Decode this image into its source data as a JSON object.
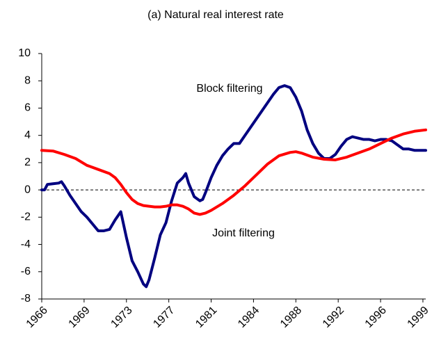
{
  "chart_data": {
    "type": "line",
    "title": "(a) Natural real interest rate",
    "xlim": [
      1966,
      2000
    ],
    "xticks": [
      {
        "value": 1966,
        "label": "1966"
      },
      {
        "value": 1969.75,
        "label": "1969"
      },
      {
        "value": 1973.5,
        "label": "1973"
      },
      {
        "value": 1977.25,
        "label": "1977"
      },
      {
        "value": 1981,
        "label": "1981"
      },
      {
        "value": 1984.75,
        "label": "1984"
      },
      {
        "value": 1988.5,
        "label": "1988"
      },
      {
        "value": 1992.25,
        "label": "1992"
      },
      {
        "value": 1996,
        "label": "1996"
      },
      {
        "value": 1999.75,
        "label": "1999"
      }
    ],
    "ylim": [
      -8,
      10
    ],
    "yticks": [
      -8,
      -6,
      -4,
      -2,
      0,
      2,
      4,
      6,
      8,
      10
    ],
    "hline": 0,
    "series": [
      {
        "name": "Block filtering",
        "color": "#000080",
        "x": [
          1966,
          1966.25,
          1966.5,
          1967,
          1967.5,
          1967.75,
          1968,
          1968.5,
          1969,
          1969.5,
          1970,
          1970.5,
          1971,
          1971.5,
          1972,
          1972.5,
          1973,
          1973.5,
          1974,
          1974.5,
          1975,
          1975.25,
          1975.5,
          1976,
          1976.5,
          1977,
          1977.5,
          1978,
          1978.5,
          1978.75,
          1979,
          1979.5,
          1980,
          1980.25,
          1980.5,
          1981,
          1981.5,
          1982,
          1982.5,
          1983,
          1983.5,
          1984,
          1984.5,
          1985,
          1985.5,
          1986,
          1986.5,
          1987,
          1987.5,
          1988,
          1988.5,
          1989,
          1989.5,
          1990,
          1990.5,
          1991,
          1991.5,
          1992,
          1992.5,
          1993,
          1993.5,
          1994,
          1994.5,
          1995,
          1995.5,
          1996,
          1996.5,
          1997,
          1997.5,
          1998,
          1998.5,
          1999,
          1999.5,
          2000
        ],
        "values": [
          0,
          0,
          0.4,
          0.45,
          0.5,
          0.6,
          0.3,
          -0.4,
          -1.0,
          -1.6,
          -2.0,
          -2.5,
          -3.0,
          -3.0,
          -2.9,
          -2.2,
          -1.6,
          -3.5,
          -5.2,
          -6.0,
          -6.9,
          -7.1,
          -6.6,
          -5.0,
          -3.3,
          -2.4,
          -0.8,
          0.5,
          0.9,
          1.2,
          0.5,
          -0.5,
          -0.8,
          -0.7,
          -0.2,
          0.9,
          1.8,
          2.5,
          3.0,
          3.4,
          3.4,
          4.0,
          4.6,
          5.2,
          5.8,
          6.4,
          7.0,
          7.5,
          7.65,
          7.5,
          6.8,
          5.8,
          4.4,
          3.4,
          2.7,
          2.3,
          2.3,
          2.6,
          3.2,
          3.7,
          3.9,
          3.8,
          3.7,
          3.7,
          3.6,
          3.7,
          3.7,
          3.6,
          3.3,
          3.0,
          3.0,
          2.9,
          2.9,
          2.9
        ]
      },
      {
        "name": "Joint filtering",
        "color": "#ff0000",
        "x": [
          1966,
          1967,
          1968,
          1969,
          1970,
          1971,
          1972,
          1972.5,
          1973,
          1973.5,
          1974,
          1974.5,
          1975,
          1975.5,
          1976,
          1976.5,
          1977,
          1977.5,
          1978,
          1978.5,
          1979,
          1979.5,
          1980,
          1980.5,
          1981,
          1982,
          1983,
          1984,
          1985,
          1986,
          1987,
          1988,
          1988.5,
          1989,
          1990,
          1991,
          1992,
          1993,
          1994,
          1995,
          1996,
          1997,
          1998,
          1999,
          2000
        ],
        "values": [
          2.9,
          2.85,
          2.6,
          2.3,
          1.8,
          1.5,
          1.2,
          0.9,
          0.4,
          -0.2,
          -0.7,
          -1.0,
          -1.15,
          -1.2,
          -1.25,
          -1.25,
          -1.2,
          -1.1,
          -1.1,
          -1.2,
          -1.4,
          -1.7,
          -1.8,
          -1.7,
          -1.5,
          -1.0,
          -0.4,
          0.3,
          1.1,
          1.9,
          2.5,
          2.75,
          2.8,
          2.7,
          2.4,
          2.25,
          2.2,
          2.4,
          2.7,
          3.0,
          3.4,
          3.8,
          4.1,
          4.3,
          4.4
        ]
      }
    ]
  }
}
